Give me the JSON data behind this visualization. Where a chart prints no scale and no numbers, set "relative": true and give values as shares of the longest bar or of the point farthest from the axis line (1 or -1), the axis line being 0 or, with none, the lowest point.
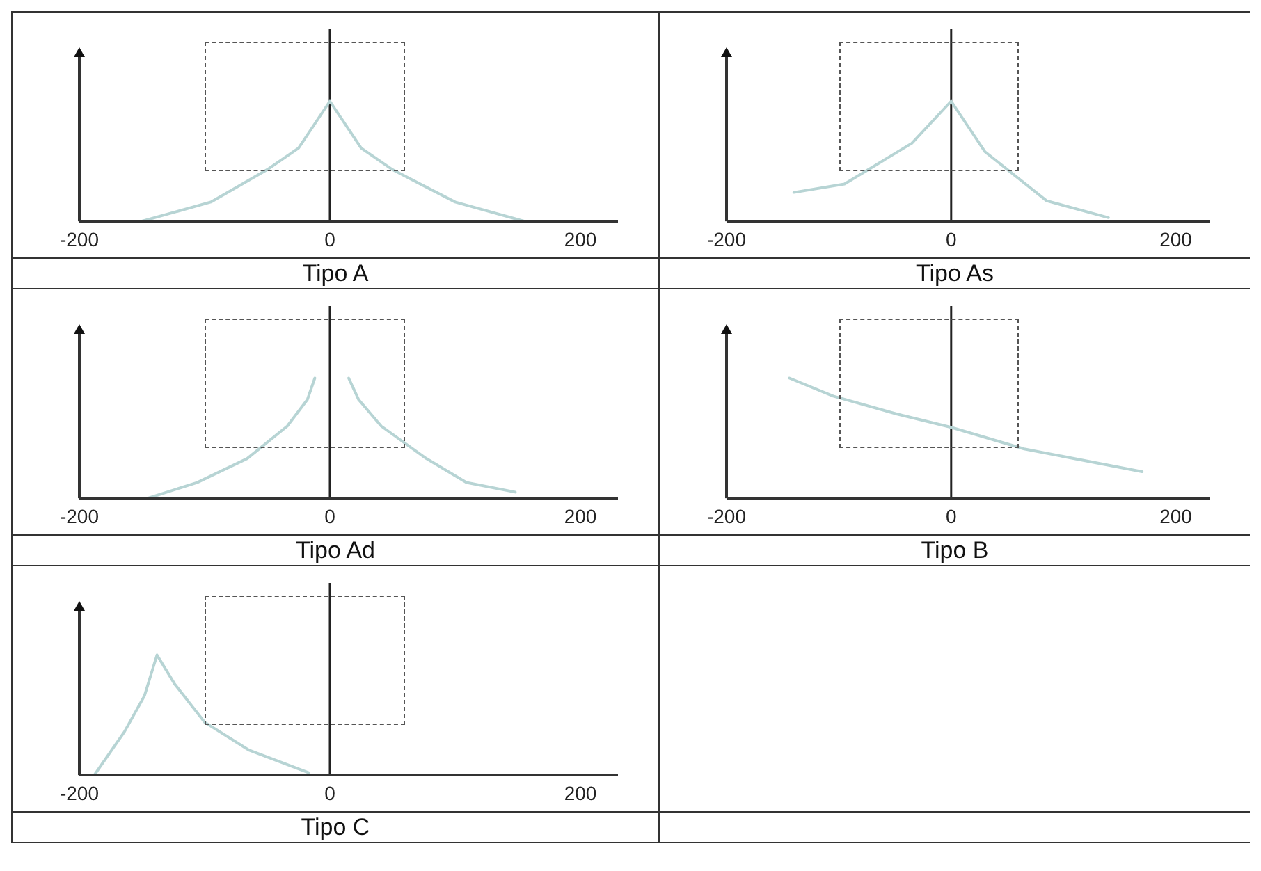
{
  "chart_data": [
    {
      "type": "line",
      "title": "Tipo A",
      "relative": true,
      "color": "#b7d4d4",
      "x": [
        -150,
        -95,
        -50,
        -25,
        0,
        25,
        50,
        100,
        155
      ],
      "values": [
        0,
        0.16,
        0.43,
        0.61,
        1,
        0.61,
        0.43,
        0.16,
        0
      ],
      "xlim": [
        -200,
        230
      ],
      "xticks": [
        -200,
        0,
        200
      ],
      "ref_lines": [
        {
          "axis": "x",
          "value": 0
        }
      ]
    },
    {
      "type": "line",
      "title": "Tipo As",
      "relative": true,
      "color": "#b7d4d4",
      "x": [
        -140,
        -95,
        -35,
        0,
        30,
        85,
        140
      ],
      "values": [
        0.24,
        0.31,
        0.65,
        1,
        0.58,
        0.17,
        0.03
      ],
      "xlim": [
        -200,
        230
      ],
      "xticks": [
        -200,
        0,
        200
      ],
      "ref_lines": [
        {
          "axis": "x",
          "value": 0
        }
      ]
    },
    {
      "type": "line",
      "title": "Tipo Ad",
      "relative": true,
      "color": "#b7d4d4",
      "x": [
        -145,
        -106,
        -66,
        -34,
        -18,
        -12,
        0,
        15,
        23,
        41,
        77,
        109,
        148
      ],
      "values": [
        0,
        0.13,
        0.33,
        0.6,
        0.82,
        1,
        null,
        1,
        0.82,
        0.6,
        0.33,
        0.13,
        0.05
      ],
      "xlim": [
        -200,
        230
      ],
      "xticks": [
        -200,
        0,
        200
      ],
      "ref_lines": [
        {
          "axis": "x",
          "value": 0
        }
      ]
    },
    {
      "type": "line",
      "title": "Tipo B",
      "relative": true,
      "color": "#b7d4d4",
      "x": [
        -144,
        -105,
        -48,
        0,
        65,
        170
      ],
      "values": [
        1,
        0.85,
        0.7,
        0.59,
        0.41,
        0.22
      ],
      "xlim": [
        -200,
        230
      ],
      "xticks": [
        -200,
        0,
        200
      ],
      "ref_lines": [
        {
          "axis": "x",
          "value": 0
        }
      ]
    },
    {
      "type": "line",
      "title": "Tipo C",
      "relative": true,
      "color": "#b7d4d4",
      "x": [
        -188,
        -164,
        -148,
        -138,
        -124,
        -100,
        -65,
        -17
      ],
      "values": [
        0,
        0.36,
        0.66,
        1,
        0.76,
        0.44,
        0.21,
        0.02
      ],
      "xlim": [
        -200,
        230
      ],
      "xticks": [
        -200,
        0,
        200
      ],
      "ref_lines": [
        {
          "axis": "x",
          "value": 0
        }
      ]
    }
  ]
}
